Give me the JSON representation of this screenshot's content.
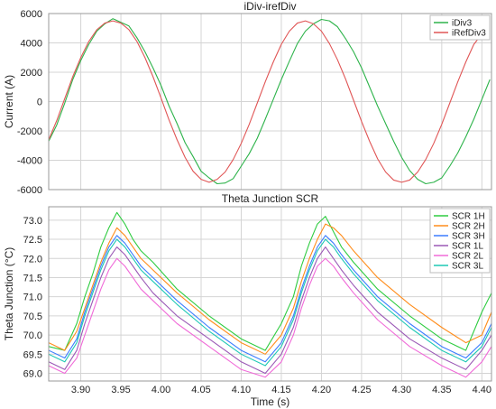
{
  "chart_data": [
    {
      "type": "line",
      "title": "iDiv-irefDiv",
      "xlabel": "",
      "ylabel": "Current (A)",
      "xlim": [
        3.86,
        4.412
      ],
      "ylim": [
        -6000,
        6000
      ],
      "xticks": [
        3.9,
        3.95,
        4.0,
        4.05,
        4.1,
        4.15,
        4.2,
        4.25,
        4.3,
        4.35,
        4.4
      ],
      "yticks": [
        -6000,
        -4000,
        -2000,
        0,
        2000,
        4000,
        6000
      ],
      "ytick_labels": [
        "-6000",
        "-4000",
        "-2000",
        "0",
        "2000",
        "4000",
        "6000"
      ],
      "grid": true,
      "legend": "top-right",
      "series": [
        {
          "name": "iDiv3",
          "color": "#2db34a",
          "x": [
            3.86,
            3.87,
            3.88,
            3.89,
            3.9,
            3.91,
            3.92,
            3.93,
            3.94,
            3.95,
            3.96,
            3.97,
            3.98,
            3.99,
            4.0,
            4.01,
            4.02,
            4.03,
            4.04,
            4.05,
            4.06,
            4.07,
            4.08,
            4.09,
            4.1,
            4.11,
            4.12,
            4.13,
            4.14,
            4.15,
            4.16,
            4.17,
            4.18,
            4.19,
            4.2,
            4.21,
            4.22,
            4.23,
            4.24,
            4.25,
            4.26,
            4.27,
            4.28,
            4.29,
            4.3,
            4.31,
            4.32,
            4.33,
            4.34,
            4.35,
            4.36,
            4.37,
            4.38,
            4.39,
            4.4,
            4.41
          ],
          "values": [
            -2700,
            -1600,
            -100,
            1500,
            2800,
            3900,
            4800,
            5300,
            5650,
            5400,
            5150,
            4350,
            3400,
            2300,
            1100,
            -300,
            -1500,
            -2800,
            -3750,
            -4750,
            -5200,
            -5600,
            -5550,
            -5250,
            -4400,
            -3550,
            -2500,
            -1200,
            150,
            1500,
            2750,
            3950,
            4800,
            5300,
            5600,
            5500,
            5100,
            4300,
            3400,
            2300,
            1000,
            -300,
            -1500,
            -2700,
            -3800,
            -4700,
            -5300,
            -5600,
            -5500,
            -5200,
            -4400,
            -3500,
            -2400,
            -1200,
            150,
            1500
          ]
        },
        {
          "name": "iRefDiv3",
          "color": "#e05555",
          "x": [
            3.86,
            3.87,
            3.88,
            3.89,
            3.9,
            3.91,
            3.92,
            3.93,
            3.94,
            3.95,
            3.96,
            3.97,
            3.98,
            3.99,
            4.0,
            4.01,
            4.02,
            4.03,
            4.04,
            4.05,
            4.06,
            4.07,
            4.08,
            4.09,
            4.1,
            4.11,
            4.12,
            4.13,
            4.14,
            4.15,
            4.16,
            4.17,
            4.18,
            4.19,
            4.2,
            4.21,
            4.22,
            4.23,
            4.24,
            4.25,
            4.26,
            4.27,
            4.28,
            4.29,
            4.3,
            4.31,
            4.32,
            4.33,
            4.34,
            4.35,
            4.36,
            4.37,
            4.38,
            4.39,
            4.4,
            4.41
          ],
          "values": [
            -2600,
            -1300,
            200,
            1700,
            3000,
            4100,
            4900,
            5350,
            5500,
            5350,
            4900,
            4100,
            3000,
            1700,
            250,
            -1250,
            -2600,
            -3800,
            -4750,
            -5300,
            -5500,
            -5300,
            -4800,
            -3950,
            -2850,
            -1550,
            -100,
            1350,
            2700,
            3900,
            4800,
            5350,
            5500,
            5300,
            4800,
            3950,
            2850,
            1550,
            100,
            -1350,
            -2700,
            -3900,
            -4800,
            -5350,
            -5500,
            -5350,
            -4800,
            -3950,
            -2850,
            -1550,
            -100,
            1350,
            2700,
            3900,
            4600,
            4700
          ]
        }
      ]
    },
    {
      "type": "line",
      "title": "Theta Junction SCR",
      "xlabel": "Time (s)",
      "ylabel": "Theta Junction (°C)",
      "xlim": [
        3.86,
        4.412
      ],
      "ylim": [
        68.8,
        73.35
      ],
      "xticks": [
        3.9,
        3.95,
        4.0,
        4.05,
        4.1,
        4.15,
        4.2,
        4.25,
        4.3,
        4.35,
        4.4
      ],
      "xtick_labels": [
        "3.90",
        "3.95",
        "4.00",
        "4.05",
        "4.10",
        "4.15",
        "4.20",
        "4.25",
        "4.30",
        "4.35",
        "4.40"
      ],
      "yticks": [
        69.0,
        69.5,
        70.0,
        70.5,
        71.0,
        71.5,
        72.0,
        72.5,
        73.0
      ],
      "ytick_labels": [
        "69.0",
        "69.5",
        "70.0",
        "70.5",
        "71.0",
        "71.5",
        "72.0",
        "72.5",
        "73.0"
      ],
      "grid": true,
      "legend": "top-right",
      "series": [
        {
          "name": "SCR 1H",
          "color": "#2ecc40",
          "x": [
            3.86,
            3.88,
            3.895,
            3.905,
            3.915,
            3.925,
            3.935,
            3.945,
            3.955,
            3.965,
            3.975,
            3.99,
            4.02,
            4.06,
            4.1,
            4.13,
            4.15,
            4.165,
            4.175,
            4.185,
            4.195,
            4.205,
            4.215,
            4.225,
            4.24,
            4.27,
            4.31,
            4.35,
            4.38,
            4.4,
            4.412
          ],
          "values": [
            69.7,
            69.6,
            70.3,
            71.0,
            71.6,
            72.3,
            72.8,
            73.2,
            72.9,
            72.5,
            72.2,
            71.9,
            71.2,
            70.5,
            69.9,
            69.6,
            70.3,
            71.0,
            71.8,
            72.4,
            72.9,
            73.1,
            72.7,
            72.3,
            71.9,
            71.2,
            70.5,
            69.9,
            69.6,
            70.6,
            71.1
          ]
        },
        {
          "name": "SCR 2H",
          "color": "#ff8c1a",
          "x": [
            3.86,
            3.88,
            3.895,
            3.905,
            3.915,
            3.925,
            3.935,
            3.945,
            3.955,
            3.965,
            3.975,
            3.99,
            4.02,
            4.06,
            4.1,
            4.13,
            4.15,
            4.165,
            4.175,
            4.185,
            4.195,
            4.205,
            4.215,
            4.225,
            4.24,
            4.27,
            4.31,
            4.35,
            4.38,
            4.4,
            4.412
          ],
          "values": [
            69.8,
            69.6,
            70.1,
            70.7,
            71.3,
            71.9,
            72.4,
            72.8,
            72.6,
            72.3,
            72.0,
            71.7,
            71.1,
            70.4,
            69.8,
            69.5,
            70.0,
            70.7,
            71.4,
            72.0,
            72.5,
            72.9,
            72.8,
            72.6,
            72.2,
            71.5,
            70.8,
            70.2,
            69.8,
            70.0,
            70.6
          ]
        },
        {
          "name": "SCR 3H",
          "color": "#3a7cff",
          "x": [
            3.86,
            3.88,
            3.895,
            3.905,
            3.915,
            3.925,
            3.935,
            3.945,
            3.955,
            3.965,
            3.975,
            3.99,
            4.02,
            4.06,
            4.1,
            4.13,
            4.15,
            4.165,
            4.175,
            4.185,
            4.195,
            4.205,
            4.215,
            4.225,
            4.24,
            4.27,
            4.31,
            4.35,
            4.38,
            4.4,
            4.412
          ],
          "values": [
            69.6,
            69.4,
            69.9,
            70.6,
            71.2,
            71.8,
            72.3,
            72.6,
            72.4,
            72.1,
            71.8,
            71.5,
            70.9,
            70.2,
            69.6,
            69.3,
            69.8,
            70.5,
            71.2,
            71.8,
            72.3,
            72.6,
            72.4,
            72.1,
            71.7,
            71.0,
            70.3,
            69.7,
            69.4,
            69.8,
            70.3
          ]
        },
        {
          "name": "SCR 1L",
          "color": "#9b59b6",
          "x": [
            3.86,
            3.88,
            3.895,
            3.905,
            3.915,
            3.925,
            3.935,
            3.945,
            3.955,
            3.965,
            3.975,
            3.99,
            4.02,
            4.06,
            4.1,
            4.13,
            4.15,
            4.165,
            4.175,
            4.185,
            4.195,
            4.205,
            4.215,
            4.225,
            4.24,
            4.27,
            4.31,
            4.35,
            4.38,
            4.4,
            4.412
          ],
          "values": [
            69.3,
            69.1,
            69.6,
            70.3,
            70.9,
            71.5,
            72.0,
            72.3,
            72.1,
            71.8,
            71.5,
            71.1,
            70.5,
            69.9,
            69.3,
            69.0,
            69.5,
            70.2,
            70.9,
            71.5,
            72.0,
            72.3,
            72.0,
            71.7,
            71.3,
            70.6,
            69.9,
            69.4,
            69.1,
            69.6,
            70.0
          ]
        },
        {
          "name": "SCR 2L",
          "color": "#f06ad8",
          "x": [
            3.86,
            3.88,
            3.895,
            3.905,
            3.915,
            3.925,
            3.935,
            3.945,
            3.955,
            3.965,
            3.975,
            3.99,
            4.02,
            4.06,
            4.1,
            4.13,
            4.15,
            4.165,
            4.175,
            4.185,
            4.195,
            4.205,
            4.215,
            4.225,
            4.24,
            4.27,
            4.31,
            4.35,
            4.38,
            4.4,
            4.412
          ],
          "values": [
            69.2,
            69.0,
            69.4,
            70.0,
            70.6,
            71.2,
            71.7,
            72.0,
            71.8,
            71.5,
            71.2,
            70.9,
            70.3,
            69.7,
            69.1,
            68.9,
            69.3,
            70.0,
            70.7,
            71.3,
            71.8,
            72.0,
            71.8,
            71.5,
            71.1,
            70.4,
            69.7,
            69.2,
            68.9,
            69.3,
            69.7
          ]
        },
        {
          "name": "SCR 3L",
          "color": "#1ec8b4",
          "x": [
            3.86,
            3.88,
            3.895,
            3.905,
            3.915,
            3.925,
            3.935,
            3.945,
            3.955,
            3.965,
            3.975,
            3.99,
            4.02,
            4.06,
            4.1,
            4.13,
            4.15,
            4.165,
            4.175,
            4.185,
            4.195,
            4.205,
            4.215,
            4.225,
            4.24,
            4.27,
            4.31,
            4.35,
            4.38,
            4.4,
            4.412
          ],
          "values": [
            69.5,
            69.3,
            69.8,
            70.5,
            71.1,
            71.7,
            72.2,
            72.5,
            72.3,
            72.0,
            71.7,
            71.4,
            70.8,
            70.1,
            69.5,
            69.2,
            69.7,
            70.4,
            71.1,
            71.7,
            72.2,
            72.5,
            72.3,
            72.0,
            71.6,
            70.9,
            70.2,
            69.6,
            69.3,
            69.7,
            70.2
          ]
        }
      ]
    }
  ]
}
